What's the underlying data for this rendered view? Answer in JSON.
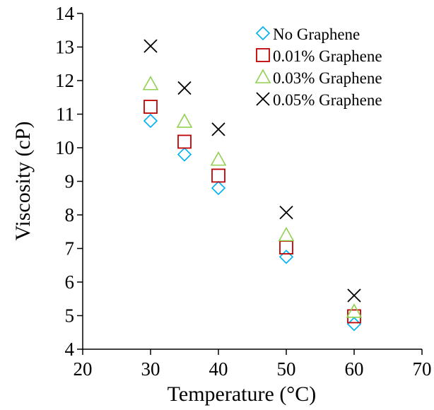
{
  "chart_data": {
    "type": "scatter",
    "title": "",
    "xlabel": "Temperature (°C)",
    "ylabel": "Viscosity (cP)",
    "xlim": [
      20,
      70
    ],
    "ylim": [
      4,
      14
    ],
    "xticks": [
      20,
      30,
      40,
      50,
      60,
      70
    ],
    "yticks": [
      4,
      5,
      6,
      7,
      8,
      9,
      10,
      11,
      12,
      13,
      14
    ],
    "grid": false,
    "legend_position": "top-right",
    "x": [
      30,
      35,
      40,
      50,
      60
    ],
    "series": [
      {
        "name": "No Graphene",
        "marker": "diamond",
        "color": "#00b0f0",
        "values": [
          10.8,
          9.8,
          8.8,
          6.75,
          4.75
        ]
      },
      {
        "name": "0.01% Graphene",
        "marker": "square",
        "color": "#c00000",
        "values": [
          11.22,
          10.18,
          9.17,
          7.03,
          4.98
        ]
      },
      {
        "name": "0.03% Graphene",
        "marker": "triangle",
        "color": "#92d050",
        "values": [
          11.9,
          10.78,
          9.65,
          7.4,
          5.12
        ]
      },
      {
        "name": "0.05% Graphene",
        "marker": "x",
        "color": "#000000",
        "values": [
          13.03,
          11.78,
          10.55,
          8.07,
          5.6
        ]
      }
    ]
  }
}
